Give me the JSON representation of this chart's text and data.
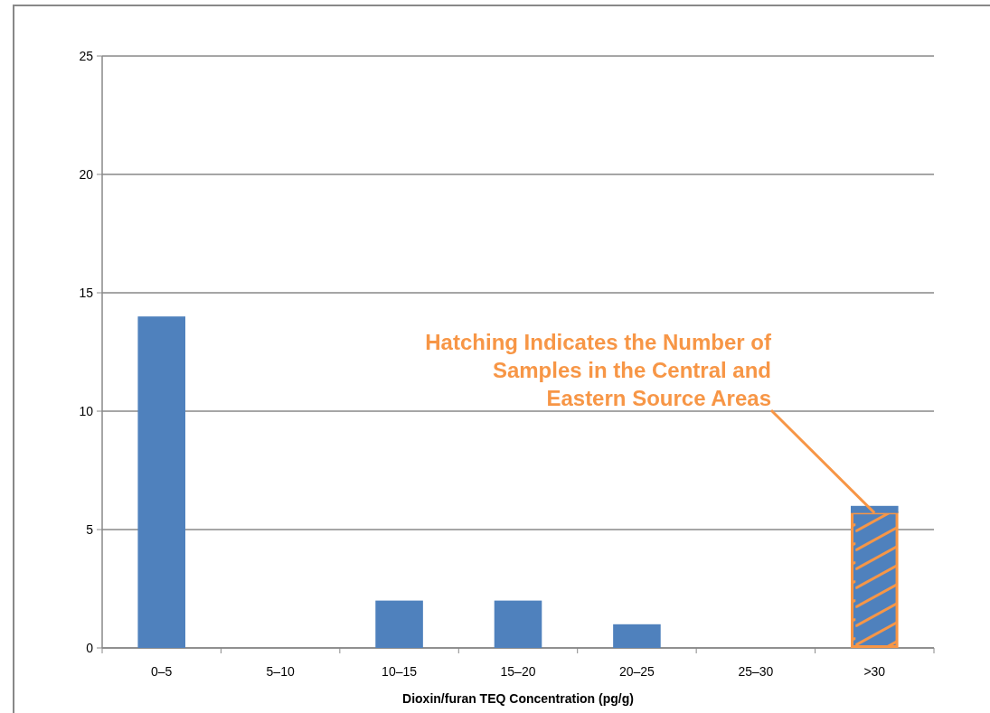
{
  "chart_data": {
    "type": "bar",
    "xlabel": "Dioxin/furan TEQ Concentration (pg/g)",
    "categories": [
      "0–5",
      "5–10",
      "10–15",
      "15–20",
      "20–25",
      "25–30",
      ">30"
    ],
    "color": "#4f81bd",
    "stacked": true,
    "series": [
      {
        "color": "#f79646",
        "values": [
          0,
          0,
          0,
          0,
          0,
          0,
          5.7
        ]
      },
      {
        "values": [
          14,
          0,
          2,
          2,
          1,
          0,
          0.3
        ]
      }
    ],
    "ylim": [
      0,
      25
    ],
    "yticks": [
      0,
      5,
      10,
      15,
      20,
      25
    ],
    "grid": "y",
    "annotations": [
      {
        "text": "Hatching Indicates the Number of Samples in the Central and Eastern Source Areas",
        "x": ">30",
        "y": 5.7
      }
    ]
  }
}
